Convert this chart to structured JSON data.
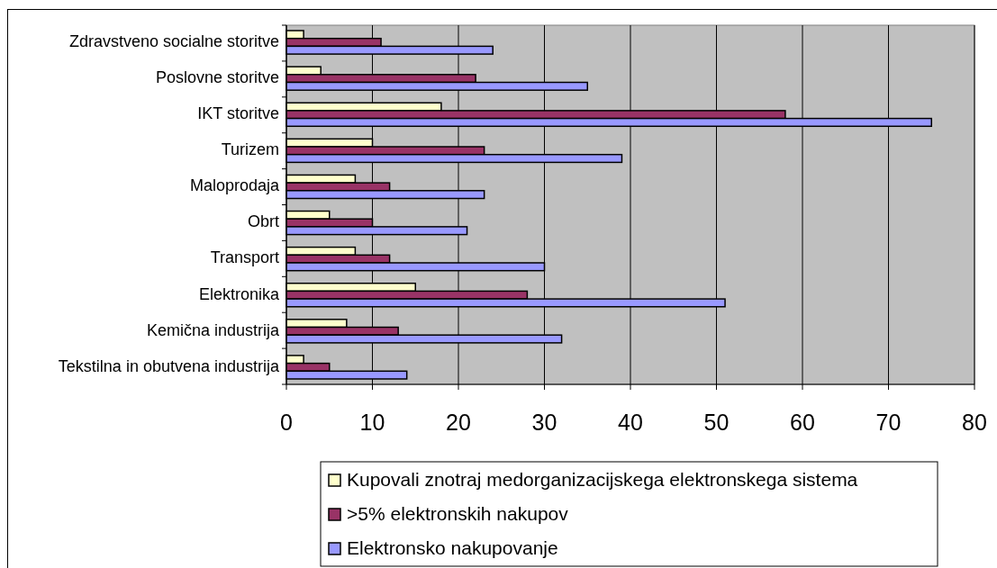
{
  "chart_data": {
    "type": "bar",
    "orientation": "horizontal",
    "categories": [
      "Zdravstveno socialne storitve",
      "Poslovne storitve",
      "IKT storitve",
      "Turizem",
      "Maloprodaja",
      "Obrt",
      "Transport",
      "Elektronika",
      "Kemična industrija",
      "Tekstilna in obutvena industrija"
    ],
    "series": [
      {
        "name": "Kupovali znotraj medorganizacijskega elektronskega sistema",
        "color": "#ffffcc",
        "values": [
          2,
          4,
          18,
          10,
          8,
          5,
          8,
          15,
          7,
          2
        ]
      },
      {
        "name": ">5% elektronskih nakupov",
        "color": "#993366",
        "values": [
          11,
          22,
          58,
          23,
          12,
          10,
          12,
          28,
          13,
          5
        ]
      },
      {
        "name": "Elektronsko nakupovanje",
        "color": "#9999ff",
        "values": [
          24,
          35,
          75,
          39,
          23,
          21,
          30,
          51,
          32,
          14
        ]
      }
    ],
    "xlim": [
      0,
      80
    ],
    "xticks": [
      0,
      10,
      20,
      30,
      40,
      50,
      60,
      70,
      80
    ],
    "grid": "x",
    "legend": "bottom"
  }
}
